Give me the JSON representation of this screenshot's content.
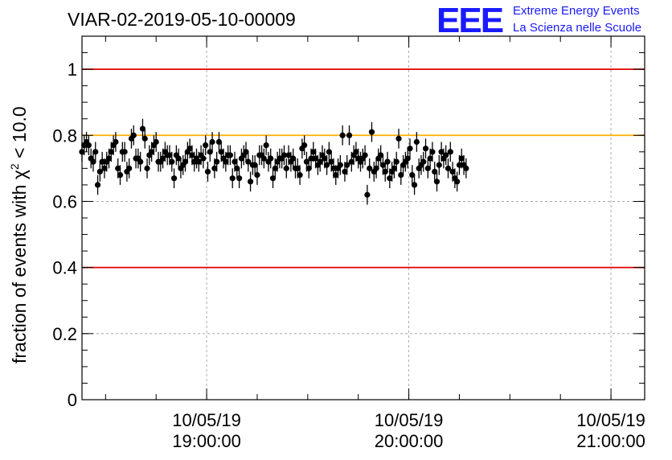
{
  "header": {
    "title": "VIAR-02-2019-05-10-00009",
    "logo_text": "EEE",
    "logo_line1": "Extreme Energy Events",
    "logo_line2": "La Scienza nelle Scuole"
  },
  "colors": {
    "threshold_line": "#e00000",
    "reference_line": "#ffb000",
    "marker": "#000000",
    "grid": "#999999",
    "logo": "#1a1aff"
  },
  "chart_data": {
    "type": "scatter",
    "title": "VIAR-02-2019-05-10-00009",
    "ylabel_prefix": "fraction of events with ",
    "ylabel_symbol": "χ",
    "ylabel_sup": "2",
    "ylabel_suffix": " < 10.0",
    "xlabel": "",
    "x_range": [
      "2019-05-10T18:23:00",
      "2019-05-10T21:10:00"
    ],
    "ylim": [
      0,
      1.1
    ],
    "y_ticks": [
      0,
      0.2,
      0.4,
      0.6,
      0.8,
      1
    ],
    "y_tick_labels": [
      "0",
      "0.2",
      "0.4",
      "0.6",
      "0.8",
      "1"
    ],
    "x_ticks": [
      {
        "time": "2019-05-10T19:00:00",
        "date": "10/05/19",
        "clock": "19:00:00"
      },
      {
        "time": "2019-05-10T20:00:00",
        "date": "10/05/19",
        "clock": "20:00:00"
      },
      {
        "time": "2019-05-10T21:00:00",
        "date": "10/05/19",
        "clock": "21:00:00"
      }
    ],
    "grid": true,
    "horizontal_lines": [
      {
        "y": 1.0,
        "color": "#e00000"
      },
      {
        "y": 0.8,
        "color": "#ffb000"
      },
      {
        "y": 0.4,
        "color": "#e00000"
      }
    ],
    "series": [
      {
        "x_start": "2019-05-10T18:23:00",
        "x_step_seconds": 40,
        "error": 0.03,
        "values": [
          0.75,
          0.77,
          0.78,
          0.77,
          0.73,
          0.72,
          0.75,
          0.65,
          0.69,
          0.72,
          0.7,
          0.72,
          0.73,
          0.75,
          0.77,
          0.78,
          0.7,
          0.68,
          0.75,
          0.75,
          0.69,
          0.7,
          0.79,
          0.8,
          0.73,
          0.73,
          0.72,
          0.82,
          0.79,
          0.7,
          0.74,
          0.75,
          0.77,
          0.78,
          0.72,
          0.72,
          0.73,
          0.75,
          0.74,
          0.74,
          0.72,
          0.67,
          0.74,
          0.73,
          0.7,
          0.71,
          0.72,
          0.75,
          0.76,
          0.74,
          0.72,
          0.73,
          0.72,
          0.74,
          0.73,
          0.77,
          0.69,
          0.75,
          0.78,
          0.7,
          0.72,
          0.78,
          0.75,
          0.73,
          0.72,
          0.74,
          0.74,
          0.67,
          0.72,
          0.7,
          0.67,
          0.73,
          0.74,
          0.75,
          0.72,
          0.66,
          0.71,
          0.71,
          0.68,
          0.74,
          0.74,
          0.73,
          0.77,
          0.72,
          0.73,
          0.67,
          0.7,
          0.72,
          0.73,
          0.73,
          0.74,
          0.7,
          0.74,
          0.72,
          0.73,
          0.7,
          0.7,
          0.68,
          0.76,
          0.77,
          0.72,
          0.7,
          0.73,
          0.75,
          0.73,
          0.71,
          0.72,
          0.74,
          0.73,
          0.71,
          0.75,
          0.72,
          0.7,
          0.68,
          0.7,
          0.71,
          0.8,
          0.69,
          0.71,
          0.8,
          0.72,
          0.74,
          0.75,
          0.73,
          0.72,
          0.73,
          0.74,
          0.62,
          0.7,
          0.81,
          0.69,
          0.7,
          0.73,
          0.74,
          0.71,
          0.69,
          0.72,
          0.67,
          0.69,
          0.7,
          0.72,
          0.79,
          0.68,
          0.71,
          0.72,
          0.73,
          0.76,
          0.68,
          0.65,
          0.78,
          0.7,
          0.71,
          0.72,
          0.76,
          0.7,
          0.73,
          0.75,
          0.69,
          0.66,
          0.71,
          0.75,
          0.73,
          0.74,
          0.7,
          0.75,
          0.69,
          0.67,
          0.66,
          0.71,
          0.73,
          0.71,
          0.7
        ]
      }
    ]
  }
}
